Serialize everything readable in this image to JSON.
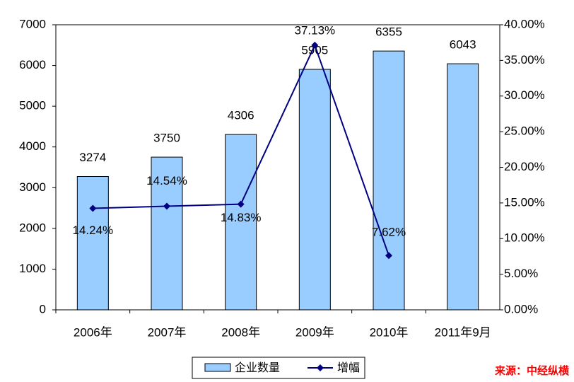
{
  "chart_data": {
    "type": "bar_line",
    "categories": [
      "2006年",
      "2007年",
      "2008年",
      "2009年",
      "2010年",
      "2011年9月"
    ],
    "series": [
      {
        "name": "企业数量",
        "color": "#99ccff",
        "type": "bar",
        "values": [
          3274,
          3750,
          4306,
          5905,
          6355,
          6043
        ]
      },
      {
        "name": "增幅",
        "color": "#000080",
        "type": "line",
        "axis": "y2",
        "values": [
          14.24,
          14.54,
          14.83,
          37.13,
          7.62,
          null
        ],
        "value_labels": [
          "14.24%",
          "14.54%",
          "14.83%",
          "37.13%",
          "7.62%",
          null
        ]
      }
    ],
    "ylim": [
      0,
      7000
    ],
    "yticks": [
      0,
      1000,
      2000,
      3000,
      4000,
      5000,
      6000,
      7000
    ],
    "y2lim": [
      0,
      40
    ],
    "y2ticks": [
      {
        "value": 0,
        "label": "0.00%"
      },
      {
        "value": 5,
        "label": "5.00%"
      },
      {
        "value": 10,
        "label": "10.00%"
      },
      {
        "value": 15,
        "label": "15.00%"
      },
      {
        "value": 20,
        "label": "20.00%"
      },
      {
        "value": 25,
        "label": "25.00%"
      },
      {
        "value": 30,
        "label": "30.00%"
      },
      {
        "value": 35,
        "label": "35.00%"
      },
      {
        "value": 40,
        "label": "40.00%"
      }
    ],
    "legend": "bottom",
    "source": "来源：中经纵横"
  }
}
